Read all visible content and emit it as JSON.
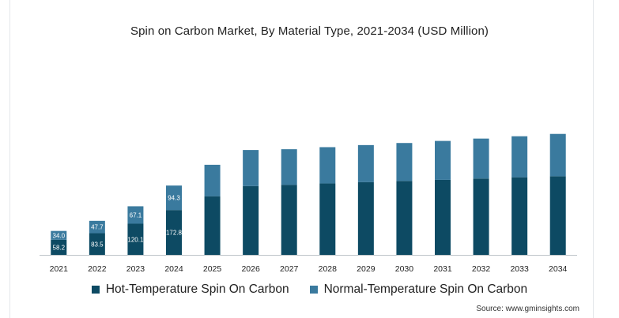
{
  "chart_data": {
    "type": "bar",
    "stacked": true,
    "title": "Spin on Carbon Market, By Material Type, 2021-2034 (USD Million)",
    "xlabel": "",
    "ylabel": "",
    "ylim": [
      0,
      760
    ],
    "grid": false,
    "legend_position": "bottom",
    "categories": [
      "2021",
      "2022",
      "2023",
      "2024",
      "2025",
      "2026",
      "2027",
      "2028",
      "2029",
      "2030",
      "2031",
      "2032",
      "2033",
      "2034"
    ],
    "series": [
      {
        "name": "Hot-Temperature Spin On Carbon",
        "color": "#0d4a63",
        "values": [
          58.2,
          83.5,
          120.1,
          172.8,
          226,
          265,
          270,
          275,
          280,
          285,
          289,
          294,
          299,
          303
        ],
        "labels": [
          "58.2",
          "83.5",
          "120.1",
          "172.8",
          "",
          "",
          "",
          "",
          "",
          "",
          "",
          "",
          "",
          ""
        ]
      },
      {
        "name": "Normal-Temperature Spin On Carbon",
        "color": "#3a7a9e",
        "values": [
          34.0,
          47.7,
          67.1,
          94.3,
          121,
          139,
          137,
          140,
          143,
          146,
          150,
          154,
          158,
          163
        ],
        "labels": [
          "34.0",
          "47.7",
          "67.1",
          "94.3",
          "",
          "",
          "",
          "",
          "",
          "",
          "",
          "",
          "",
          ""
        ]
      }
    ]
  },
  "source": "Source: www.gminsights.com"
}
